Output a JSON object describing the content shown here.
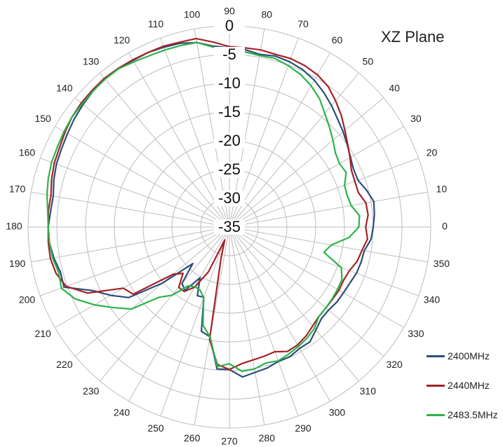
{
  "chart_data": {
    "type": "polar-line",
    "title": "XZ Plane",
    "angle_unit": "degrees",
    "angle_ticks": [
      0,
      10,
      20,
      30,
      40,
      50,
      60,
      70,
      80,
      90,
      100,
      110,
      120,
      130,
      140,
      150,
      160,
      170,
      180,
      190,
      200,
      210,
      220,
      230,
      240,
      250,
      260,
      270,
      280,
      290,
      300,
      310,
      320,
      330,
      340,
      350
    ],
    "angle_labels": [
      "0",
      "10",
      "20",
      "30",
      "40",
      "50",
      "60",
      "70",
      "80",
      "90",
      "100",
      "110",
      "120",
      "130",
      "140",
      "150",
      "160",
      "170",
      "180",
      "190",
      "200",
      "210",
      "220",
      "230",
      "240",
      "250",
      "260",
      "270",
      "280",
      "290",
      "300",
      "310",
      "320",
      "330",
      "340",
      "350"
    ],
    "radial_ticks": [
      0,
      -5,
      -10,
      -15,
      -20,
      -25,
      -30,
      -35
    ],
    "radial_labels": [
      "0",
      "-5",
      "-10",
      "-15",
      "-20",
      "-25",
      "-30",
      "-35"
    ],
    "rlim": [
      -35,
      0
    ],
    "grid": true,
    "legend_position": "bottom-right",
    "series": [
      {
        "name": "2400MHz",
        "color": "#2e4d7b",
        "points": [
          [
            0,
            -10
          ],
          [
            5,
            -9.7
          ],
          [
            10,
            -9.5
          ],
          [
            15,
            -10.3
          ],
          [
            20,
            -11.2
          ],
          [
            25,
            -11.2
          ],
          [
            30,
            -10.7
          ],
          [
            35,
            -10
          ],
          [
            40,
            -9.2
          ],
          [
            45,
            -8.4
          ],
          [
            50,
            -7.4
          ],
          [
            55,
            -6.4
          ],
          [
            60,
            -5.5
          ],
          [
            65,
            -4.8
          ],
          [
            70,
            -4.4
          ],
          [
            75,
            -4.2
          ],
          [
            80,
            -4.5
          ],
          [
            85,
            -4
          ],
          [
            90,
            -3.8
          ],
          [
            95,
            -3.4
          ],
          [
            100,
            -2.4
          ],
          [
            105,
            -1.9
          ],
          [
            110,
            -1.7
          ],
          [
            115,
            -1.5
          ],
          [
            120,
            -1.5
          ],
          [
            125,
            -1.3
          ],
          [
            130,
            -1.3
          ],
          [
            135,
            -1.5
          ],
          [
            140,
            -1.8
          ],
          [
            145,
            -2.1
          ],
          [
            150,
            -2.5
          ],
          [
            155,
            -2.8
          ],
          [
            160,
            -3
          ],
          [
            165,
            -3.4
          ],
          [
            170,
            -3.9
          ],
          [
            175,
            -3.8
          ],
          [
            180,
            -3.5
          ],
          [
            185,
            -3.6
          ],
          [
            190,
            -4
          ],
          [
            195,
            -4.6
          ],
          [
            200,
            -4.4
          ],
          [
            205,
            -8.8
          ],
          [
            210,
            -11.2
          ],
          [
            215,
            -13.6
          ],
          [
            220,
            -19.8
          ],
          [
            225,
            -26
          ],
          [
            230,
            -22.2
          ],
          [
            235,
            -21.5
          ],
          [
            240,
            -24.8
          ],
          [
            245,
            -21.8
          ],
          [
            250,
            -22
          ],
          [
            255,
            -16.2
          ],
          [
            260,
            -15.6
          ],
          [
            265,
            -10.2
          ],
          [
            270,
            -10.2
          ],
          [
            275,
            -8.8
          ],
          [
            280,
            -9.3
          ],
          [
            285,
            -9.6
          ],
          [
            290,
            -10.1
          ],
          [
            295,
            -10.1
          ],
          [
            300,
            -10.6
          ],
          [
            305,
            -10.6
          ],
          [
            310,
            -11.6
          ],
          [
            315,
            -12.4
          ],
          [
            320,
            -12.5
          ],
          [
            325,
            -12.2
          ],
          [
            330,
            -12.1
          ],
          [
            335,
            -11.9
          ],
          [
            340,
            -11.5
          ],
          [
            345,
            -11.3
          ],
          [
            350,
            -11.2
          ],
          [
            355,
            -10.3
          ]
        ]
      },
      {
        "name": "2440MHz",
        "color": "#a32226",
        "points": [
          [
            0,
            -11.3
          ],
          [
            5,
            -10.8
          ],
          [
            10,
            -10.9
          ],
          [
            15,
            -11.8
          ],
          [
            20,
            -11.8
          ],
          [
            25,
            -11.6
          ],
          [
            30,
            -10.8
          ],
          [
            35,
            -9.9
          ],
          [
            40,
            -8.8
          ],
          [
            45,
            -7.5
          ],
          [
            50,
            -6.3
          ],
          [
            55,
            -5.1
          ],
          [
            60,
            -4.4
          ],
          [
            65,
            -4
          ],
          [
            70,
            -3.8
          ],
          [
            75,
            -3.9
          ],
          [
            80,
            -3.7
          ],
          [
            85,
            -3.7
          ],
          [
            90,
            -3.6
          ],
          [
            95,
            -2.7
          ],
          [
            100,
            -1.7
          ],
          [
            105,
            -1.7
          ],
          [
            110,
            -1.5
          ],
          [
            115,
            -1.5
          ],
          [
            120,
            -1.4
          ],
          [
            125,
            -1.3
          ],
          [
            130,
            -1.2
          ],
          [
            135,
            -1.3
          ],
          [
            140,
            -1.4
          ],
          [
            145,
            -1.6
          ],
          [
            150,
            -2
          ],
          [
            155,
            -2.4
          ],
          [
            160,
            -2.6
          ],
          [
            165,
            -3
          ],
          [
            170,
            -3.5
          ],
          [
            175,
            -3.4
          ],
          [
            180,
            -3.5
          ],
          [
            185,
            -3.4
          ],
          [
            190,
            -3.4
          ],
          [
            195,
            -3.8
          ],
          [
            200,
            -4.8
          ],
          [
            205,
            -7.8
          ],
          [
            210,
            -13.7
          ],
          [
            215,
            -14.6
          ],
          [
            220,
            -22.2
          ],
          [
            225,
            -23.6
          ],
          [
            230,
            -21.3
          ],
          [
            235,
            -21.3
          ],
          [
            240,
            -22.9
          ],
          [
            245,
            -26.4
          ],
          [
            250,
            -32.6
          ],
          [
            255,
            -29.4
          ],
          [
            260,
            -15.1
          ],
          [
            265,
            -11
          ],
          [
            270,
            -10.2
          ],
          [
            275,
            -11.1
          ],
          [
            280,
            -11.5
          ],
          [
            285,
            -11.7
          ],
          [
            290,
            -11.9
          ],
          [
            295,
            -11.1
          ],
          [
            300,
            -11.3
          ],
          [
            305,
            -11.8
          ],
          [
            310,
            -12.5
          ],
          [
            315,
            -13
          ],
          [
            320,
            -13.1
          ],
          [
            325,
            -13.1
          ],
          [
            330,
            -13
          ],
          [
            335,
            -13.1
          ],
          [
            340,
            -12.8
          ],
          [
            345,
            -12
          ],
          [
            350,
            -11.6
          ],
          [
            355,
            -10.9
          ]
        ]
      },
      {
        "name": "2483.5MHz",
        "color": "#2bb34a",
        "points": [
          [
            0,
            -12.5
          ],
          [
            5,
            -12.3
          ],
          [
            10,
            -13.5
          ],
          [
            15,
            -13.8
          ],
          [
            20,
            -13.7
          ],
          [
            25,
            -12.6
          ],
          [
            30,
            -12.9
          ],
          [
            35,
            -12.5
          ],
          [
            40,
            -11.5
          ],
          [
            45,
            -10.4
          ],
          [
            50,
            -9.2
          ],
          [
            55,
            -7.7
          ],
          [
            60,
            -6.6
          ],
          [
            65,
            -5.7
          ],
          [
            70,
            -5.1
          ],
          [
            75,
            -4.6
          ],
          [
            80,
            -4.7
          ],
          [
            85,
            -4.4
          ],
          [
            90,
            -4.2
          ],
          [
            95,
            -3.6
          ],
          [
            100,
            -2.4
          ],
          [
            105,
            -2.3
          ],
          [
            110,
            -2.2
          ],
          [
            115,
            -2.1
          ],
          [
            120,
            -1.8
          ],
          [
            125,
            -1.4
          ],
          [
            130,
            -1.4
          ],
          [
            135,
            -1.5
          ],
          [
            140,
            -1.6
          ],
          [
            145,
            -1.6
          ],
          [
            150,
            -1.8
          ],
          [
            155,
            -2
          ],
          [
            160,
            -2.1
          ],
          [
            165,
            -2.4
          ],
          [
            170,
            -2.8
          ],
          [
            175,
            -3.3
          ],
          [
            180,
            -3.5
          ],
          [
            185,
            -3.6
          ],
          [
            190,
            -3.8
          ],
          [
            195,
            -4.3
          ],
          [
            200,
            -3.9
          ],
          [
            205,
            -5.4
          ],
          [
            210,
            -7.9
          ],
          [
            215,
            -10.5
          ],
          [
            220,
            -12.8
          ],
          [
            225,
            -17.7
          ],
          [
            230,
            -19.5
          ],
          [
            235,
            -22.5
          ],
          [
            240,
            -23
          ],
          [
            245,
            -22.9
          ],
          [
            250,
            -21.9
          ],
          [
            255,
            -17.3
          ],
          [
            260,
            -15.6
          ],
          [
            265,
            -10.6
          ],
          [
            270,
            -11.2
          ],
          [
            275,
            -9.8
          ],
          [
            280,
            -9.9
          ],
          [
            285,
            -10.5
          ],
          [
            290,
            -10.2
          ],
          [
            295,
            -10.6
          ],
          [
            300,
            -11
          ],
          [
            305,
            -11.4
          ],
          [
            310,
            -12
          ],
          [
            315,
            -13
          ],
          [
            320,
            -13.1
          ],
          [
            325,
            -13.2
          ],
          [
            330,
            -13.3
          ],
          [
            335,
            -13.4
          ],
          [
            340,
            -14.3
          ],
          [
            345,
            -18
          ],
          [
            350,
            -17
          ],
          [
            355,
            -14.1
          ]
        ]
      }
    ]
  }
}
